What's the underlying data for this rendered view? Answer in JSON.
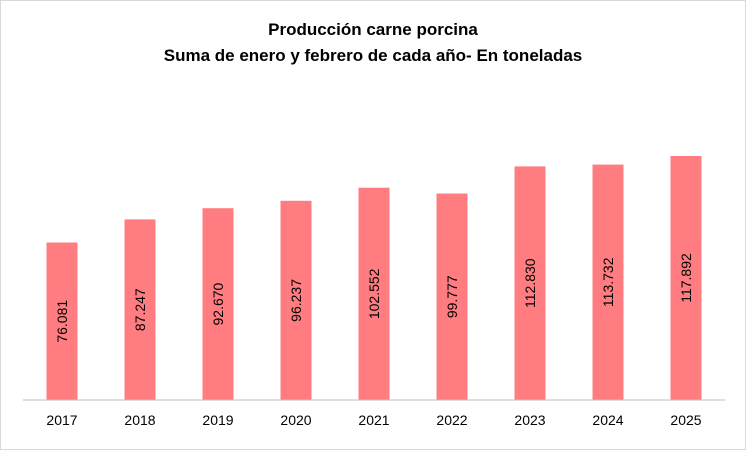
{
  "chart_data": {
    "type": "bar",
    "title": "Producción carne porcina",
    "subtitle": "Suma de enero y febrero de cada año- En toneladas",
    "categories": [
      "2017",
      "2018",
      "2019",
      "2020",
      "2021",
      "2022",
      "2023",
      "2024",
      "2025"
    ],
    "values": [
      76081,
      87247,
      92670,
      96237,
      102552,
      99777,
      112830,
      113732,
      117892
    ],
    "data_labels": [
      "76.081",
      "87.247",
      "92.670",
      "96.237",
      "102.552",
      "99.777",
      "112.830",
      "113.732",
      "117.892"
    ],
    "ylim": [
      0,
      140000
    ],
    "grid": false,
    "legend": "none",
    "bar_color": "#ff7c80",
    "axis_color": "#bfbfbf"
  }
}
